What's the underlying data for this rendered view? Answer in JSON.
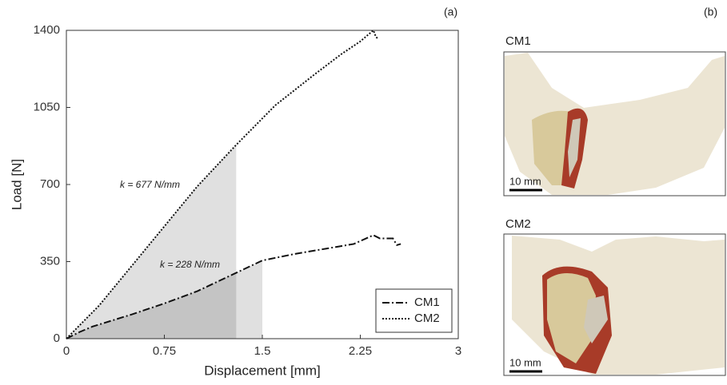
{
  "chart_data": {
    "type": "line",
    "x_label": "Displacement [mm]",
    "y_label": "Load [N]",
    "xlim": [
      0,
      3
    ],
    "ylim": [
      0,
      1400
    ],
    "xticks": [
      0,
      0.75,
      1.5,
      2.25,
      3
    ],
    "yticks": [
      0,
      350,
      700,
      1050,
      1400
    ],
    "legend": "lower right",
    "series": [
      {
        "name": "CM1",
        "color": "#111111",
        "dash": "dashdot",
        "shade_to": 1.5,
        "x": [
          0,
          0.1,
          0.2,
          0.5,
          0.75,
          1.0,
          1.25,
          1.5,
          1.75,
          2.0,
          2.2,
          2.35,
          2.4,
          2.5,
          2.53,
          2.56
        ],
        "values": [
          0,
          30,
          55,
          110,
          160,
          215,
          285,
          355,
          385,
          410,
          430,
          470,
          455,
          455,
          425,
          430
        ]
      },
      {
        "name": "CM2",
        "color": "#111111",
        "dash": "dotted",
        "shade_to": 1.3,
        "x": [
          0,
          0.25,
          0.5,
          0.75,
          1.0,
          1.3,
          1.6,
          1.9,
          2.1,
          2.25,
          2.32,
          2.35,
          2.37,
          2.39
        ],
        "values": [
          0,
          150,
          330,
          510,
          690,
          880,
          1060,
          1200,
          1290,
          1350,
          1385,
          1400,
          1370,
          1360
        ]
      }
    ],
    "annotations": [
      "k = 677 N/mm",
      "k = 228 N/mm"
    ]
  },
  "figure": {
    "label_a": "(a)",
    "label_b": "(b)",
    "images": [
      {
        "title": "CM1",
        "scale": "10 mm"
      },
      {
        "title": "CM2",
        "scale": "10 mm"
      }
    ]
  }
}
